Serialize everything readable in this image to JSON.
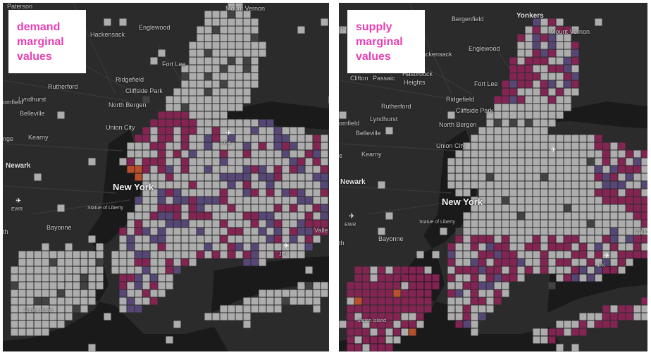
{
  "panels": [
    {
      "title_lines": [
        "demand",
        "marginal",
        "values"
      ],
      "labels": {
        "paterson": "Paterson",
        "mount_vernon": "Mount Vernon",
        "hackensack": "Hackensack",
        "englewood": "Englewood",
        "fort_lee": "Fort Lee",
        "ridgefield": "Ridgefield",
        "cliffside_park": "Cliffside Park",
        "rutherford": "Rutherford",
        "lyndhurst": "Lyndhurst",
        "bloomfield": "omfield",
        "belleville": "Belleville",
        "north_bergen": "North Bergen",
        "union_city": "Union City",
        "kearny": "Kearny",
        "orange": "nge",
        "newark": "Newark",
        "new_york": "New York",
        "ewr": "EWR",
        "statue_of_liberty": "Statue of Liberty",
        "bayonne": "Bayonne",
        "elizabeth": "th",
        "lga": "LGA",
        "jfk": "JFK",
        "staten_island": "Staten Island",
        "valley_stream": "Valle"
      }
    },
    {
      "title_lines": [
        "supply",
        "marginal",
        "values"
      ],
      "labels": {
        "yonkers": "Yonkers",
        "paterson": "P",
        "bergenfield": "Bergenfield",
        "mount_vernon": "Mount Vernon",
        "hackensack": "ackensack",
        "englewood": "Englewood",
        "clifton": "Clifton",
        "passaic": "Passaic",
        "hasbrouck": "Hasbrouck",
        "heights": "Heights",
        "fort_lee": "Fort Lee",
        "ridgefield": "Ridgefield",
        "cliffside_park": "Cliffside Park",
        "rutherford": "Rutherford",
        "lyndhurst": "Lyndhurst",
        "bloomfield": "omfield",
        "belleville": "Belleville",
        "north_bergen": "North Bergen",
        "union_city": "Union City",
        "kearny": "Kearny",
        "orange": "e",
        "newark": "Newark",
        "new_york": "New York",
        "statue_of_liberty": "Statue of Liberty",
        "ewr": "EWR",
        "bayonne": "Bayonne",
        "elizabeth": "th",
        "jfk": "JFK",
        "staten_island": "Staten Island",
        "valley_stream": "Valle"
      }
    }
  ],
  "colors": {
    "map_background": "#2b2b2b",
    "water": "#1a1a1a",
    "grid_low": "#b9b9b9",
    "grid_mid_purple": "#5b4a7e",
    "grid_high_magenta": "#8b2457",
    "grid_peak_orange": "#c8542c",
    "title_text": "#e83fb3"
  }
}
